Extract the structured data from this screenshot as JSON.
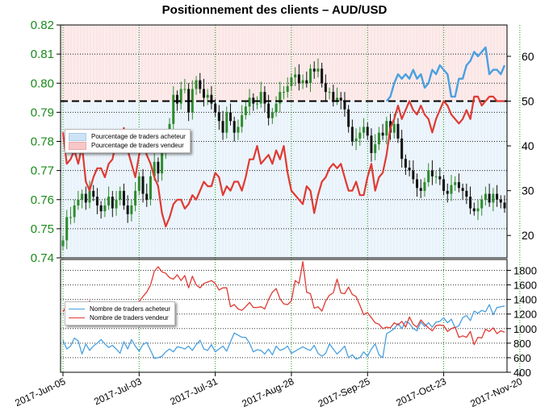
{
  "title": "Positionnement des clients – AUD/USD",
  "colors": {
    "buy": "#4aa0e0",
    "sell": "#e03a32",
    "candle_up": "#2e8b2e",
    "candle_down": "#111111",
    "price_axis": "#1a8a1a",
    "grid": "#1a9a1a",
    "buy_zone": "#e8f2fb",
    "sell_zone": "#fbe5e5"
  },
  "legend_top": {
    "buy_label": "Pourcentage de traders acheteur",
    "sell_label": "Pourcentage de traders vendeur"
  },
  "legend_bottom": {
    "buy_label": "Nombre de traders acheteur",
    "sell_label": "Nombre de traders vendeur"
  },
  "chart_data": [
    {
      "type": "line",
      "panel": "price and positioning",
      "x_ticks": [
        "2017-Jun-05",
        "2017-Jul-03",
        "2017-Jul-31",
        "2017-Aug-28",
        "2017-Sep-25",
        "2017-Oct-23",
        "2017-Nov-20"
      ],
      "price_axis": {
        "ylim": [
          0.74,
          0.82
        ],
        "ticks": [
          "0.74",
          "0.75",
          "0.76",
          "0.77",
          "0.78",
          "0.79",
          "0.80",
          "0.81",
          "0.82"
        ]
      },
      "percent_axis": {
        "ylim": [
          15,
          67
        ],
        "ticks": [
          "20",
          "30",
          "40",
          "50",
          "60"
        ],
        "reference_line": 50
      },
      "price_close": [
        0.746,
        0.754,
        0.754,
        0.758,
        0.76,
        0.762,
        0.759,
        0.763,
        0.761,
        0.758,
        0.756,
        0.758,
        0.761,
        0.757,
        0.76,
        0.763,
        0.758,
        0.755,
        0.758,
        0.763,
        0.768,
        0.762,
        0.76,
        0.768,
        0.773,
        0.769,
        0.776,
        0.78,
        0.786,
        0.796,
        0.793,
        0.798,
        0.798,
        0.79,
        0.798,
        0.801,
        0.798,
        0.795,
        0.796,
        0.793,
        0.79,
        0.787,
        0.783,
        0.79,
        0.787,
        0.783,
        0.785,
        0.789,
        0.792,
        0.795,
        0.793,
        0.793,
        0.797,
        0.793,
        0.788,
        0.79,
        0.793,
        0.797,
        0.797,
        0.799,
        0.802,
        0.803,
        0.8,
        0.801,
        0.8,
        0.805,
        0.804,
        0.805,
        0.8,
        0.797,
        0.797,
        0.794,
        0.795,
        0.794,
        0.791,
        0.785,
        0.78,
        0.781,
        0.783,
        0.785,
        0.782,
        0.776,
        0.779,
        0.783,
        0.782,
        0.787,
        0.783,
        0.786,
        0.781,
        0.774,
        0.771,
        0.77,
        0.767,
        0.764,
        0.763,
        0.766,
        0.77,
        0.768,
        0.768,
        0.767,
        0.763,
        0.762,
        0.765,
        0.766,
        0.764,
        0.763,
        0.761,
        0.757,
        0.756,
        0.757,
        0.76,
        0.762,
        0.759,
        0.762,
        0.76,
        0.759,
        0.757
      ],
      "buyers_percent_series": [
        {
          "name": "Pourcentage de traders acheteur",
          "x_index": [
            85,
            86,
            87,
            88,
            89,
            90,
            91,
            92,
            93,
            94,
            95,
            96,
            97,
            98,
            99,
            100,
            101,
            102,
            103,
            104,
            105,
            106,
            107,
            108,
            109,
            110,
            111,
            112,
            113,
            114,
            115,
            116
          ],
          "values": [
            50,
            51,
            54,
            56,
            55,
            56,
            55,
            57,
            55,
            56,
            53,
            54,
            57,
            56,
            58,
            57,
            56,
            51,
            51,
            55,
            55,
            58,
            59,
            61,
            60,
            61,
            62,
            56,
            57,
            57,
            56,
            58
          ]
        }
      ],
      "sellers_percent_series": [
        {
          "name": "Pourcentage de traders vendeur",
          "x_index": [
            0,
            1,
            2,
            3,
            4,
            5,
            6,
            7,
            8,
            9,
            10,
            11,
            12,
            13,
            14,
            15,
            16,
            17,
            18,
            19,
            20,
            21,
            22,
            23,
            24,
            25,
            26,
            27,
            28,
            29,
            30,
            31,
            32,
            33,
            34,
            35,
            36,
            37,
            38,
            39,
            40,
            41,
            42,
            43,
            44,
            45,
            46,
            47,
            48,
            49,
            50,
            51,
            52,
            53,
            54,
            55,
            56,
            57,
            58,
            59,
            60,
            61,
            62,
            63,
            64,
            65,
            66,
            67,
            68,
            69,
            70,
            71,
            72,
            73,
            74,
            75,
            76,
            77,
            78,
            79,
            80,
            81,
            82,
            83,
            84,
            85,
            86,
            87,
            88,
            89,
            90,
            91,
            92,
            93,
            94,
            95,
            96,
            97,
            98,
            99,
            100,
            101,
            102,
            103,
            104,
            105,
            106,
            107,
            108,
            109,
            110,
            111,
            112,
            113,
            114,
            115,
            116
          ],
          "values": [
            43,
            36,
            37,
            39,
            36,
            40,
            32,
            30,
            33,
            35,
            35,
            33,
            36,
            37,
            41,
            40,
            44,
            39,
            36,
            33,
            38,
            41,
            38,
            36,
            33,
            31,
            25,
            22,
            24,
            27,
            28,
            28,
            26,
            27,
            29,
            28,
            30,
            32,
            31,
            31,
            34,
            33,
            29,
            31,
            30,
            32,
            32,
            30,
            33,
            37,
            37,
            40,
            36,
            37,
            38,
            36,
            39,
            37,
            40,
            34,
            30,
            29,
            28,
            27,
            31,
            30,
            25,
            29,
            32,
            33,
            35,
            36,
            35,
            36,
            33,
            30,
            30,
            32,
            29,
            29,
            33,
            36,
            30,
            33,
            34,
            38,
            44,
            46,
            49,
            46,
            48,
            50,
            48,
            47,
            49,
            47,
            46,
            43,
            46,
            48,
            50,
            49,
            47,
            46,
            45,
            46,
            48,
            46,
            51,
            51,
            49,
            50,
            51,
            51,
            50,
            50,
            50
          ]
        }
      ]
    },
    {
      "type": "line",
      "panel": "trader counts",
      "y_axis": {
        "ylim": [
          400,
          1950
        ],
        "ticks": [
          "400",
          "600",
          "800",
          "1000",
          "1200",
          "1400",
          "1600",
          "1800"
        ]
      },
      "series": [
        {
          "name": "Nombre de traders acheteur",
          "values": [
            840,
            720,
            760,
            870,
            830,
            650,
            790,
            700,
            760,
            800,
            850,
            790,
            740,
            770,
            720,
            660,
            820,
            720,
            850,
            760,
            690,
            780,
            810,
            700,
            590,
            600,
            620,
            680,
            720,
            680,
            750,
            740,
            720,
            760,
            700,
            780,
            840,
            720,
            700,
            780,
            680,
            720,
            760,
            690,
            820,
            940,
            910,
            880,
            880,
            800,
            680,
            710,
            700,
            650,
            720,
            640,
            760,
            700,
            720,
            760,
            660,
            690,
            720,
            750,
            720,
            700,
            770,
            660,
            620,
            660,
            790,
            720,
            650,
            700,
            760,
            600,
            640,
            580,
            600,
            680,
            620,
            720,
            790,
            640,
            600,
            930,
            960,
            1000,
            1070,
            1000,
            1100,
            1070,
            1000,
            970,
            1090,
            1030,
            1080,
            1020,
            1090,
            1100,
            1150,
            1080,
            1130,
            1010,
            1040,
            1150,
            1180,
            1110,
            1240,
            1210,
            1250,
            1230,
            1330,
            1190,
            1290,
            1300,
            1310
          ]
        },
        {
          "name": "Nombre de traders vendeur",
          "values": [
            1230,
            1320,
            1250,
            1190,
            1280,
            1210,
            1210,
            1380,
            1280,
            1210,
            1290,
            1360,
            1260,
            1210,
            1360,
            1320,
            1290,
            1150,
            1120,
            1220,
            1370,
            1440,
            1500,
            1600,
            1790,
            1850,
            1780,
            1760,
            1700,
            1680,
            1740,
            1660,
            1730,
            1560,
            1720,
            1600,
            1560,
            1620,
            1640,
            1660,
            1620,
            1530,
            1560,
            1560,
            1300,
            1330,
            1270,
            1250,
            1300,
            1360,
            1290,
            1290,
            1300,
            1270,
            1400,
            1500,
            1550,
            1410,
            1340,
            1330,
            1380,
            1660,
            1620,
            1920,
            1500,
            1480,
            1280,
            1300,
            1240,
            1380,
            1460,
            1490,
            1680,
            1490,
            1480,
            1570,
            1470,
            1440,
            1320,
            1190,
            1220,
            1150,
            1080,
            1060,
            1000,
            1020,
            1010,
            1080,
            1050,
            1100,
            1020,
            1160,
            1060,
            1020,
            1120,
            1060,
            1010,
            970,
            1040,
            1050,
            1040,
            960,
            1000,
            1020,
            880,
            900,
            880,
            960,
            780,
            880,
            870,
            990,
            960,
            1010,
            930,
            970,
            950
          ]
        }
      ]
    }
  ]
}
